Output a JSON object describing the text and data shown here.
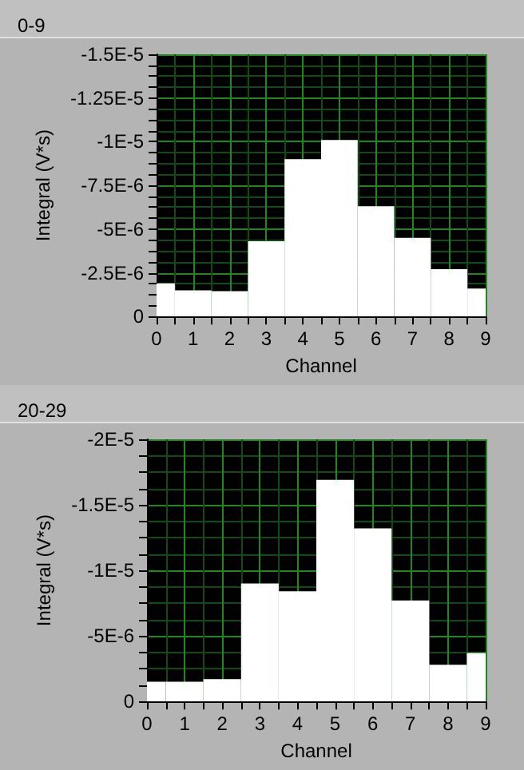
{
  "chart_data": [
    {
      "type": "histogram",
      "title": "0-9",
      "xlabel": "Channel",
      "ylabel": "Integral (V*s)",
      "bins": [
        0,
        0.5,
        1.5,
        2.5,
        3.5,
        4.5,
        5.5,
        6.5,
        7.5,
        8.5,
        9
      ],
      "series": [
        {
          "color": "#ffffff",
          "values": [
            -1.9e-06,
            -1.5e-06,
            -1.45e-06,
            -4.3e-06,
            -9e-06,
            -1.01e-05,
            -6.3e-06,
            -4.5e-06,
            -2.7e-06,
            -1.6e-06
          ]
        }
      ],
      "xlim": [
        0,
        9
      ],
      "xticks": [
        0,
        {
          "value": 0.5,
          "label": null
        },
        1,
        {
          "value": 1.5,
          "label": null
        },
        2,
        {
          "value": 2.5,
          "label": null
        },
        3,
        {
          "value": 3.5,
          "label": null
        },
        4,
        {
          "value": 4.5,
          "label": null
        },
        5,
        {
          "value": 5.5,
          "label": null
        },
        6,
        {
          "value": 6.5,
          "label": null
        },
        7,
        {
          "value": 7.5,
          "label": null
        },
        8,
        {
          "value": 8.5,
          "label": null
        },
        9
      ],
      "ylim": [
        0,
        -1.5e-05
      ],
      "yticks": [
        {
          "value": 0,
          "label": "0"
        },
        {
          "value": -6.25e-07,
          "label": null
        },
        {
          "value": -1.25e-06,
          "label": null
        },
        {
          "value": -1.875e-06,
          "label": null
        },
        {
          "value": -2.5e-06,
          "label": "-2.5E-6"
        },
        {
          "value": -3.125e-06,
          "label": null
        },
        {
          "value": -3.75e-06,
          "label": null
        },
        {
          "value": -4.375e-06,
          "label": null
        },
        {
          "value": -5e-06,
          "label": "-5E-6"
        },
        {
          "value": -5.625e-06,
          "label": null
        },
        {
          "value": -6.25e-06,
          "label": null
        },
        {
          "value": -6.875e-06,
          "label": null
        },
        {
          "value": -7.5e-06,
          "label": "-7.5E-6"
        },
        {
          "value": -8.125e-06,
          "label": null
        },
        {
          "value": -8.75e-06,
          "label": null
        },
        {
          "value": -9.375e-06,
          "label": null
        },
        {
          "value": -1e-05,
          "label": "-1E-5"
        },
        {
          "value": -1.0625e-05,
          "label": null
        },
        {
          "value": -1.125e-05,
          "label": null
        },
        {
          "value": -1.1875e-05,
          "label": null
        },
        {
          "value": -1.25e-05,
          "label": "-1.25E-5"
        },
        {
          "value": -1.3125e-05,
          "label": null
        },
        {
          "value": -1.375e-05,
          "label": null
        },
        {
          "value": -1.4375e-05,
          "label": null
        },
        {
          "value": -1.5e-05,
          "label": "-1.5E-5"
        }
      ],
      "grid": true
    },
    {
      "type": "histogram",
      "title": "20-29",
      "xlabel": "Channel",
      "ylabel": "Integral (V*s)",
      "bins": [
        0,
        0.5,
        1.5,
        2.5,
        3.5,
        4.5,
        5.5,
        6.5,
        7.5,
        8.5,
        9
      ],
      "series": [
        {
          "color": "#ffffff",
          "values": [
            -1.5e-06,
            -1.5e-06,
            -1.7e-06,
            -9e-06,
            -8.4e-06,
            -1.69e-05,
            -1.32e-05,
            -7.7e-06,
            -2.8e-06,
            -3.7e-06
          ]
        }
      ],
      "xlim": [
        0,
        9
      ],
      "xticks": [
        0,
        {
          "value": 0.5,
          "label": null
        },
        1,
        {
          "value": 1.5,
          "label": null
        },
        2,
        {
          "value": 2.5,
          "label": null
        },
        3,
        {
          "value": 3.5,
          "label": null
        },
        4,
        {
          "value": 4.5,
          "label": null
        },
        5,
        {
          "value": 5.5,
          "label": null
        },
        6,
        {
          "value": 6.5,
          "label": null
        },
        7,
        {
          "value": 7.5,
          "label": null
        },
        8,
        {
          "value": 8.5,
          "label": null
        },
        9
      ],
      "ylim": [
        0,
        -2e-05
      ],
      "yticks": [
        {
          "value": 0,
          "label": "0"
        },
        {
          "value": -1.25e-06,
          "label": null
        },
        {
          "value": -2.5e-06,
          "label": null
        },
        {
          "value": -3.75e-06,
          "label": null
        },
        {
          "value": -5e-06,
          "label": "-5E-6"
        },
        {
          "value": -6.25e-06,
          "label": null
        },
        {
          "value": -7.5e-06,
          "label": null
        },
        {
          "value": -8.75e-06,
          "label": null
        },
        {
          "value": -1e-05,
          "label": "-1E-5"
        },
        {
          "value": -1.125e-05,
          "label": null
        },
        {
          "value": -1.25e-05,
          "label": null
        },
        {
          "value": -1.375e-05,
          "label": null
        },
        {
          "value": -1.5e-05,
          "label": "-1.5E-5"
        },
        {
          "value": -1.625e-05,
          "label": null
        },
        {
          "value": -1.75e-05,
          "label": null
        },
        {
          "value": -1.875e-05,
          "label": null
        },
        {
          "value": -2e-05,
          "label": "-2E-5"
        }
      ],
      "grid": true
    }
  ]
}
